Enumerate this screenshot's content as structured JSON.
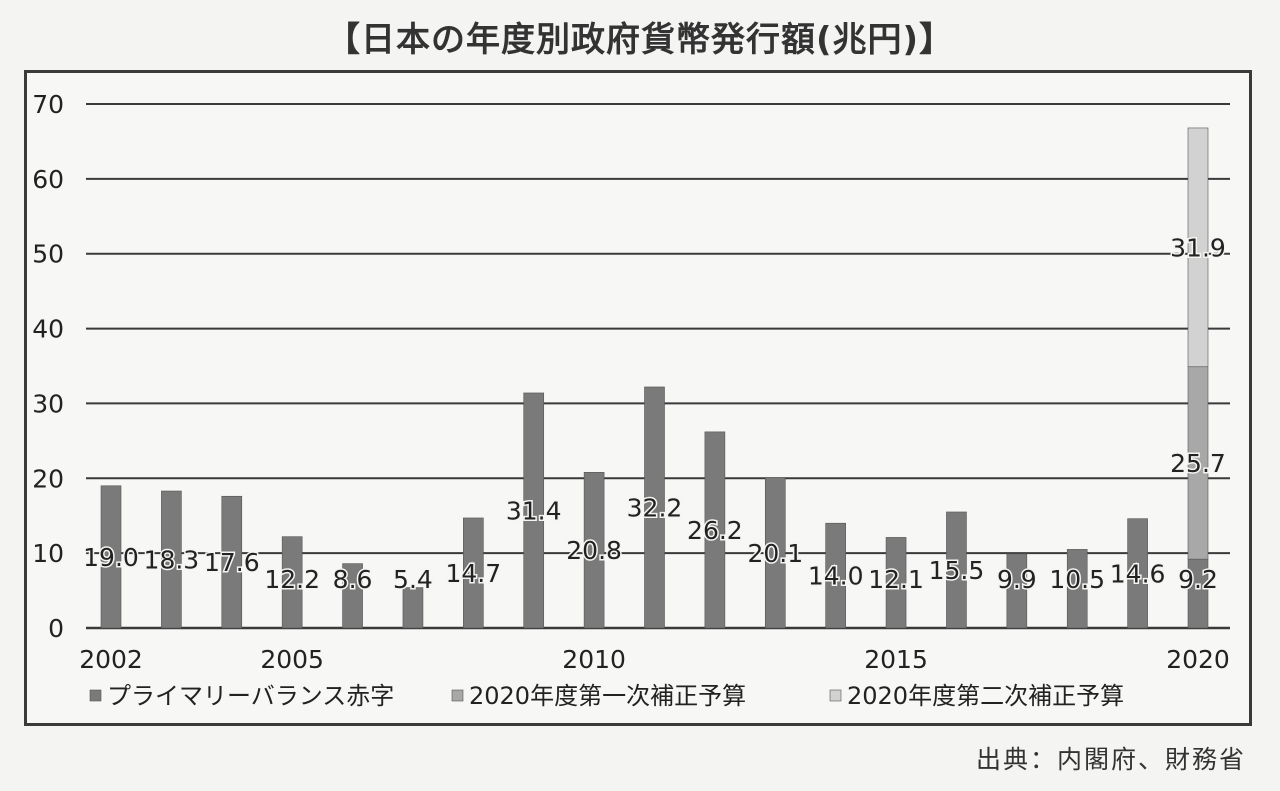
{
  "title": "【日本の年度別政府貨幣発行額(兆円)】",
  "source": "出典：内閣府、財務省",
  "colors": {
    "primary_balance": "#7a7a7a",
    "first_supplementary": "#a8a8a8",
    "second_supplementary": "#d2d2d2",
    "gridline": "#3a3a3a",
    "background": "#f4f4f2"
  },
  "chart_data": {
    "type": "bar",
    "stacked": true,
    "categories": [
      "2002",
      "2003",
      "2004",
      "2005",
      "2006",
      "2007",
      "2008",
      "2009",
      "2010",
      "2011",
      "2012",
      "2013",
      "2014",
      "2015",
      "2016",
      "2017",
      "2018",
      "2019",
      "2020"
    ],
    "x_tick_labels": [
      "2002",
      "2005",
      "2010",
      "2015",
      "2020"
    ],
    "ylim": [
      0,
      70
    ],
    "y_ticks": [
      "0",
      "10",
      "20",
      "30",
      "40",
      "50",
      "60",
      "70"
    ],
    "grid": true,
    "legend_position": "bottom",
    "series": [
      {
        "name": "プライマリーバランス赤字",
        "values": [
          19.0,
          18.3,
          17.6,
          12.2,
          8.6,
          5.4,
          14.7,
          31.4,
          20.8,
          32.2,
          26.2,
          20.1,
          14.0,
          12.1,
          15.5,
          9.9,
          10.5,
          14.6,
          9.2
        ],
        "labels": [
          "19.0",
          "18.3",
          "17.6",
          "12.2",
          "8.6",
          "5.4",
          "14.7",
          "31.4",
          "20.8",
          "32.2",
          "26.2",
          "20.1",
          "14.0",
          "12.1",
          "15.5",
          "9.9",
          "10.5",
          "14.6",
          "9.2"
        ]
      },
      {
        "name": "2020年度第一次補正予算",
        "values": [
          0,
          0,
          0,
          0,
          0,
          0,
          0,
          0,
          0,
          0,
          0,
          0,
          0,
          0,
          0,
          0,
          0,
          0,
          25.7
        ],
        "labels": [
          "",
          "",
          "",
          "",
          "",
          "",
          "",
          "",
          "",
          "",
          "",
          "",
          "",
          "",
          "",
          "",
          "",
          "",
          "25.7"
        ]
      },
      {
        "name": "2020年度第二次補正予算",
        "values": [
          0,
          0,
          0,
          0,
          0,
          0,
          0,
          0,
          0,
          0,
          0,
          0,
          0,
          0,
          0,
          0,
          0,
          0,
          31.9
        ],
        "labels": [
          "",
          "",
          "",
          "",
          "",
          "",
          "",
          "",
          "",
          "",
          "",
          "",
          "",
          "",
          "",
          "",
          "",
          "",
          "31.9"
        ]
      }
    ]
  }
}
